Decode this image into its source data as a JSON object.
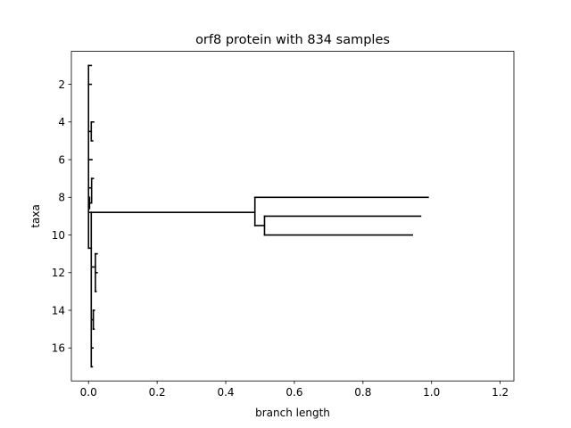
{
  "chart_data": {
    "type": "dendrogram",
    "title": "orf8 protein with 834 samples",
    "xlabel": "branch length",
    "ylabel": "taxa",
    "xlim": [
      -0.05,
      1.24
    ],
    "ylim": [
      17.75,
      0.25
    ],
    "x_ticks": [
      0.0,
      0.2,
      0.4,
      0.6,
      0.8,
      1.0,
      1.2
    ],
    "x_tick_labels": [
      "0.0",
      "0.2",
      "0.4",
      "0.6",
      "0.8",
      "1.0",
      "1.2"
    ],
    "y_ticks": [
      2,
      4,
      6,
      8,
      10,
      12,
      14,
      16
    ],
    "y_tick_labels": [
      "2",
      "4",
      "6",
      "8",
      "10",
      "12",
      "14",
      "16"
    ],
    "grid": false,
    "color": "#000000",
    "branches": [
      {
        "x1": 0.0,
        "y1": 8.8,
        "x2": 0.485,
        "y2": 8.8
      },
      {
        "x1": 0.485,
        "y1": 8.0,
        "x2": 0.485,
        "y2": 9.5
      },
      {
        "x1": 0.485,
        "y1": 8.0,
        "x2": 0.99,
        "y2": 8.0
      },
      {
        "x1": 0.485,
        "y1": 9.5,
        "x2": 0.513,
        "y2": 9.5
      },
      {
        "x1": 0.513,
        "y1": 9.0,
        "x2": 0.513,
        "y2": 10.0
      },
      {
        "x1": 0.513,
        "y1": 9.0,
        "x2": 0.968,
        "y2": 9.0
      },
      {
        "x1": 0.513,
        "y1": 10.0,
        "x2": 0.944,
        "y2": 10.0
      },
      {
        "x1": 0.0,
        "y1": 1.0,
        "x2": 0.0,
        "y2": 10.7
      },
      {
        "x1": 0.0,
        "y1": 1.0,
        "x2": 0.008,
        "y2": 1.0
      },
      {
        "x1": 0.0,
        "y1": 2.0,
        "x2": 0.008,
        "y2": 2.0
      },
      {
        "x1": 0.0,
        "y1": 4.5,
        "x2": 0.008,
        "y2": 4.5
      },
      {
        "x1": 0.008,
        "y1": 4.0,
        "x2": 0.008,
        "y2": 5.0
      },
      {
        "x1": 0.008,
        "y1": 4.0,
        "x2": 0.015,
        "y2": 4.0
      },
      {
        "x1": 0.008,
        "y1": 5.0,
        "x2": 0.012,
        "y2": 5.0
      },
      {
        "x1": 0.0,
        "y1": 6.0,
        "x2": 0.01,
        "y2": 6.0
      },
      {
        "x1": 0.0,
        "y1": 7.5,
        "x2": 0.009,
        "y2": 7.5
      },
      {
        "x1": 0.009,
        "y1": 7.0,
        "x2": 0.009,
        "y2": 8.3
      },
      {
        "x1": 0.009,
        "y1": 7.0,
        "x2": 0.014,
        "y2": 7.0
      },
      {
        "x1": 0.003,
        "y1": 8.0,
        "x2": 0.003,
        "y2": 8.6
      },
      {
        "x1": 0.003,
        "y1": 8.3,
        "x2": 0.009,
        "y2": 8.3
      },
      {
        "x1": 0.008,
        "y1": 8.8,
        "x2": 0.008,
        "y2": 17.0
      },
      {
        "x1": 0.008,
        "y1": 10.7,
        "x2": 0.0,
        "y2": 10.7
      },
      {
        "x1": 0.008,
        "y1": 11.7,
        "x2": 0.02,
        "y2": 11.7
      },
      {
        "x1": 0.02,
        "y1": 11.0,
        "x2": 0.02,
        "y2": 13.0
      },
      {
        "x1": 0.02,
        "y1": 11.0,
        "x2": 0.025,
        "y2": 11.0
      },
      {
        "x1": 0.02,
        "y1": 12.0,
        "x2": 0.025,
        "y2": 12.0
      },
      {
        "x1": 0.02,
        "y1": 13.0,
        "x2": 0.022,
        "y2": 13.0
      },
      {
        "x1": 0.008,
        "y1": 14.5,
        "x2": 0.014,
        "y2": 14.5
      },
      {
        "x1": 0.014,
        "y1": 14.0,
        "x2": 0.014,
        "y2": 15.0
      },
      {
        "x1": 0.014,
        "y1": 14.0,
        "x2": 0.017,
        "y2": 14.0
      },
      {
        "x1": 0.014,
        "y1": 15.0,
        "x2": 0.016,
        "y2": 15.0
      },
      {
        "x1": 0.008,
        "y1": 16.0,
        "x2": 0.013,
        "y2": 16.0
      },
      {
        "x1": 0.008,
        "y1": 17.0,
        "x2": 0.011,
        "y2": 17.0
      }
    ]
  }
}
